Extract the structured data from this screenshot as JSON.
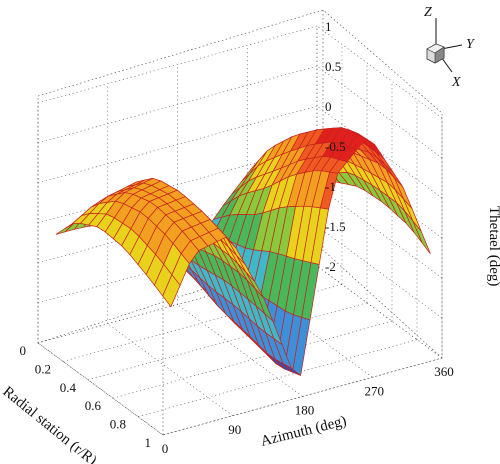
{
  "chart_data": {
    "type": "surface",
    "xlabel": "Radial station (r/R)",
    "ylabel": "Azimuth (deg)",
    "zlabel": "Thetael (deg)",
    "x_ticks": [
      "0",
      "0.2",
      "0.4",
      "0.6",
      "0.8",
      "1"
    ],
    "y_ticks": [
      "0",
      "90",
      "180",
      "270",
      "360"
    ],
    "z_ticks": [
      "1",
      "0.5",
      "0",
      "-0.5",
      "-1",
      "-1.5",
      "-2"
    ],
    "xlim": [
      0,
      1
    ],
    "ylim": [
      0,
      360
    ],
    "zlim": [
      -2,
      1
    ],
    "colormap": [
      "#2a4fb8",
      "#3f8fd8",
      "#3fb8c8",
      "#49b85a",
      "#8ac83c",
      "#e8d21c",
      "#f2a020",
      "#ee5a22",
      "#e0201c"
    ],
    "mesh_color": "#c8201e",
    "grid": true,
    "surface_samples": {
      "azimuth_deg": [
        0,
        45,
        90,
        135,
        180,
        225,
        270,
        315,
        360
      ],
      "r_over_R": [
        0.0,
        0.2,
        0.4,
        0.6,
        0.8,
        1.0
      ],
      "theta_deg": [
        [
          -0.7,
          -0.8,
          -0.9,
          -1.2,
          -1.4,
          -1.0,
          -0.6,
          -0.7,
          -0.9
        ],
        [
          -0.4,
          -0.1,
          0.0,
          -0.8,
          -1.6,
          -0.6,
          0.0,
          -0.3,
          -0.8
        ],
        [
          -0.3,
          0.2,
          0.3,
          -0.7,
          -1.8,
          -0.3,
          0.4,
          0.1,
          -0.7
        ],
        [
          -0.4,
          0.3,
          0.35,
          -0.6,
          -1.9,
          0.1,
          0.7,
          0.2,
          -0.7
        ],
        [
          -0.6,
          0.25,
          0.3,
          -0.6,
          -2.0,
          0.4,
          0.95,
          0.3,
          -0.8
        ],
        [
          -0.8,
          0.1,
          0.2,
          -0.7,
          -1.9,
          0.6,
          1.0,
          0.2,
          -1.0
        ]
      ]
    },
    "orientation_triad": [
      "Z",
      "Y",
      "X"
    ]
  }
}
